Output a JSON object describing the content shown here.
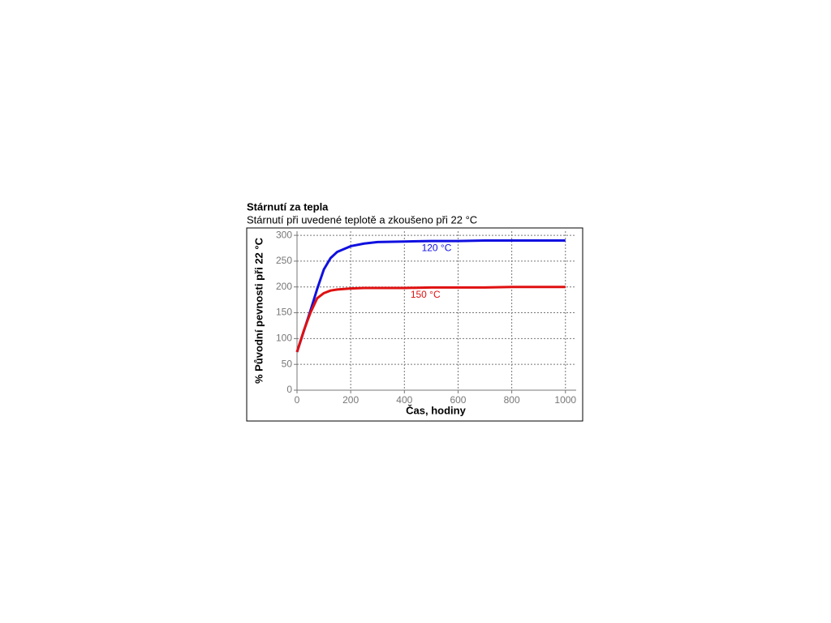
{
  "chart_data": {
    "type": "line",
    "title": "Stárnutí za tepla",
    "subtitle": "Stárnutí při uvedené teplotě a zkoušeno při 22 °C",
    "x_label": "Čas, hodiny",
    "y_label": "% Původní pevnosti při 22 °C",
    "x": [
      0,
      25,
      50,
      75,
      100,
      125,
      150,
      200,
      250,
      300,
      400,
      500,
      600,
      700,
      800,
      900,
      1000
    ],
    "series": [
      {
        "name": "120 °C",
        "color": "#1010e0",
        "values": [
          74,
          114,
          154,
          196,
          234,
          256,
          268,
          279,
          284,
          287,
          288,
          289,
          289,
          290,
          290,
          290,
          290
        ]
      },
      {
        "name": "150 °C",
        "color": "#e01010",
        "values": [
          74,
          115,
          150,
          178,
          188,
          193,
          195,
          197,
          198,
          198,
          198,
          199,
          199,
          199,
          200,
          200,
          200
        ]
      }
    ],
    "xlim": [
      0,
      1040
    ],
    "ylim": [
      0,
      308
    ],
    "xticks": [
      0,
      200,
      400,
      600,
      800,
      1000
    ],
    "yticks": [
      0,
      50,
      100,
      150,
      200,
      250,
      300
    ],
    "grid": true
  }
}
